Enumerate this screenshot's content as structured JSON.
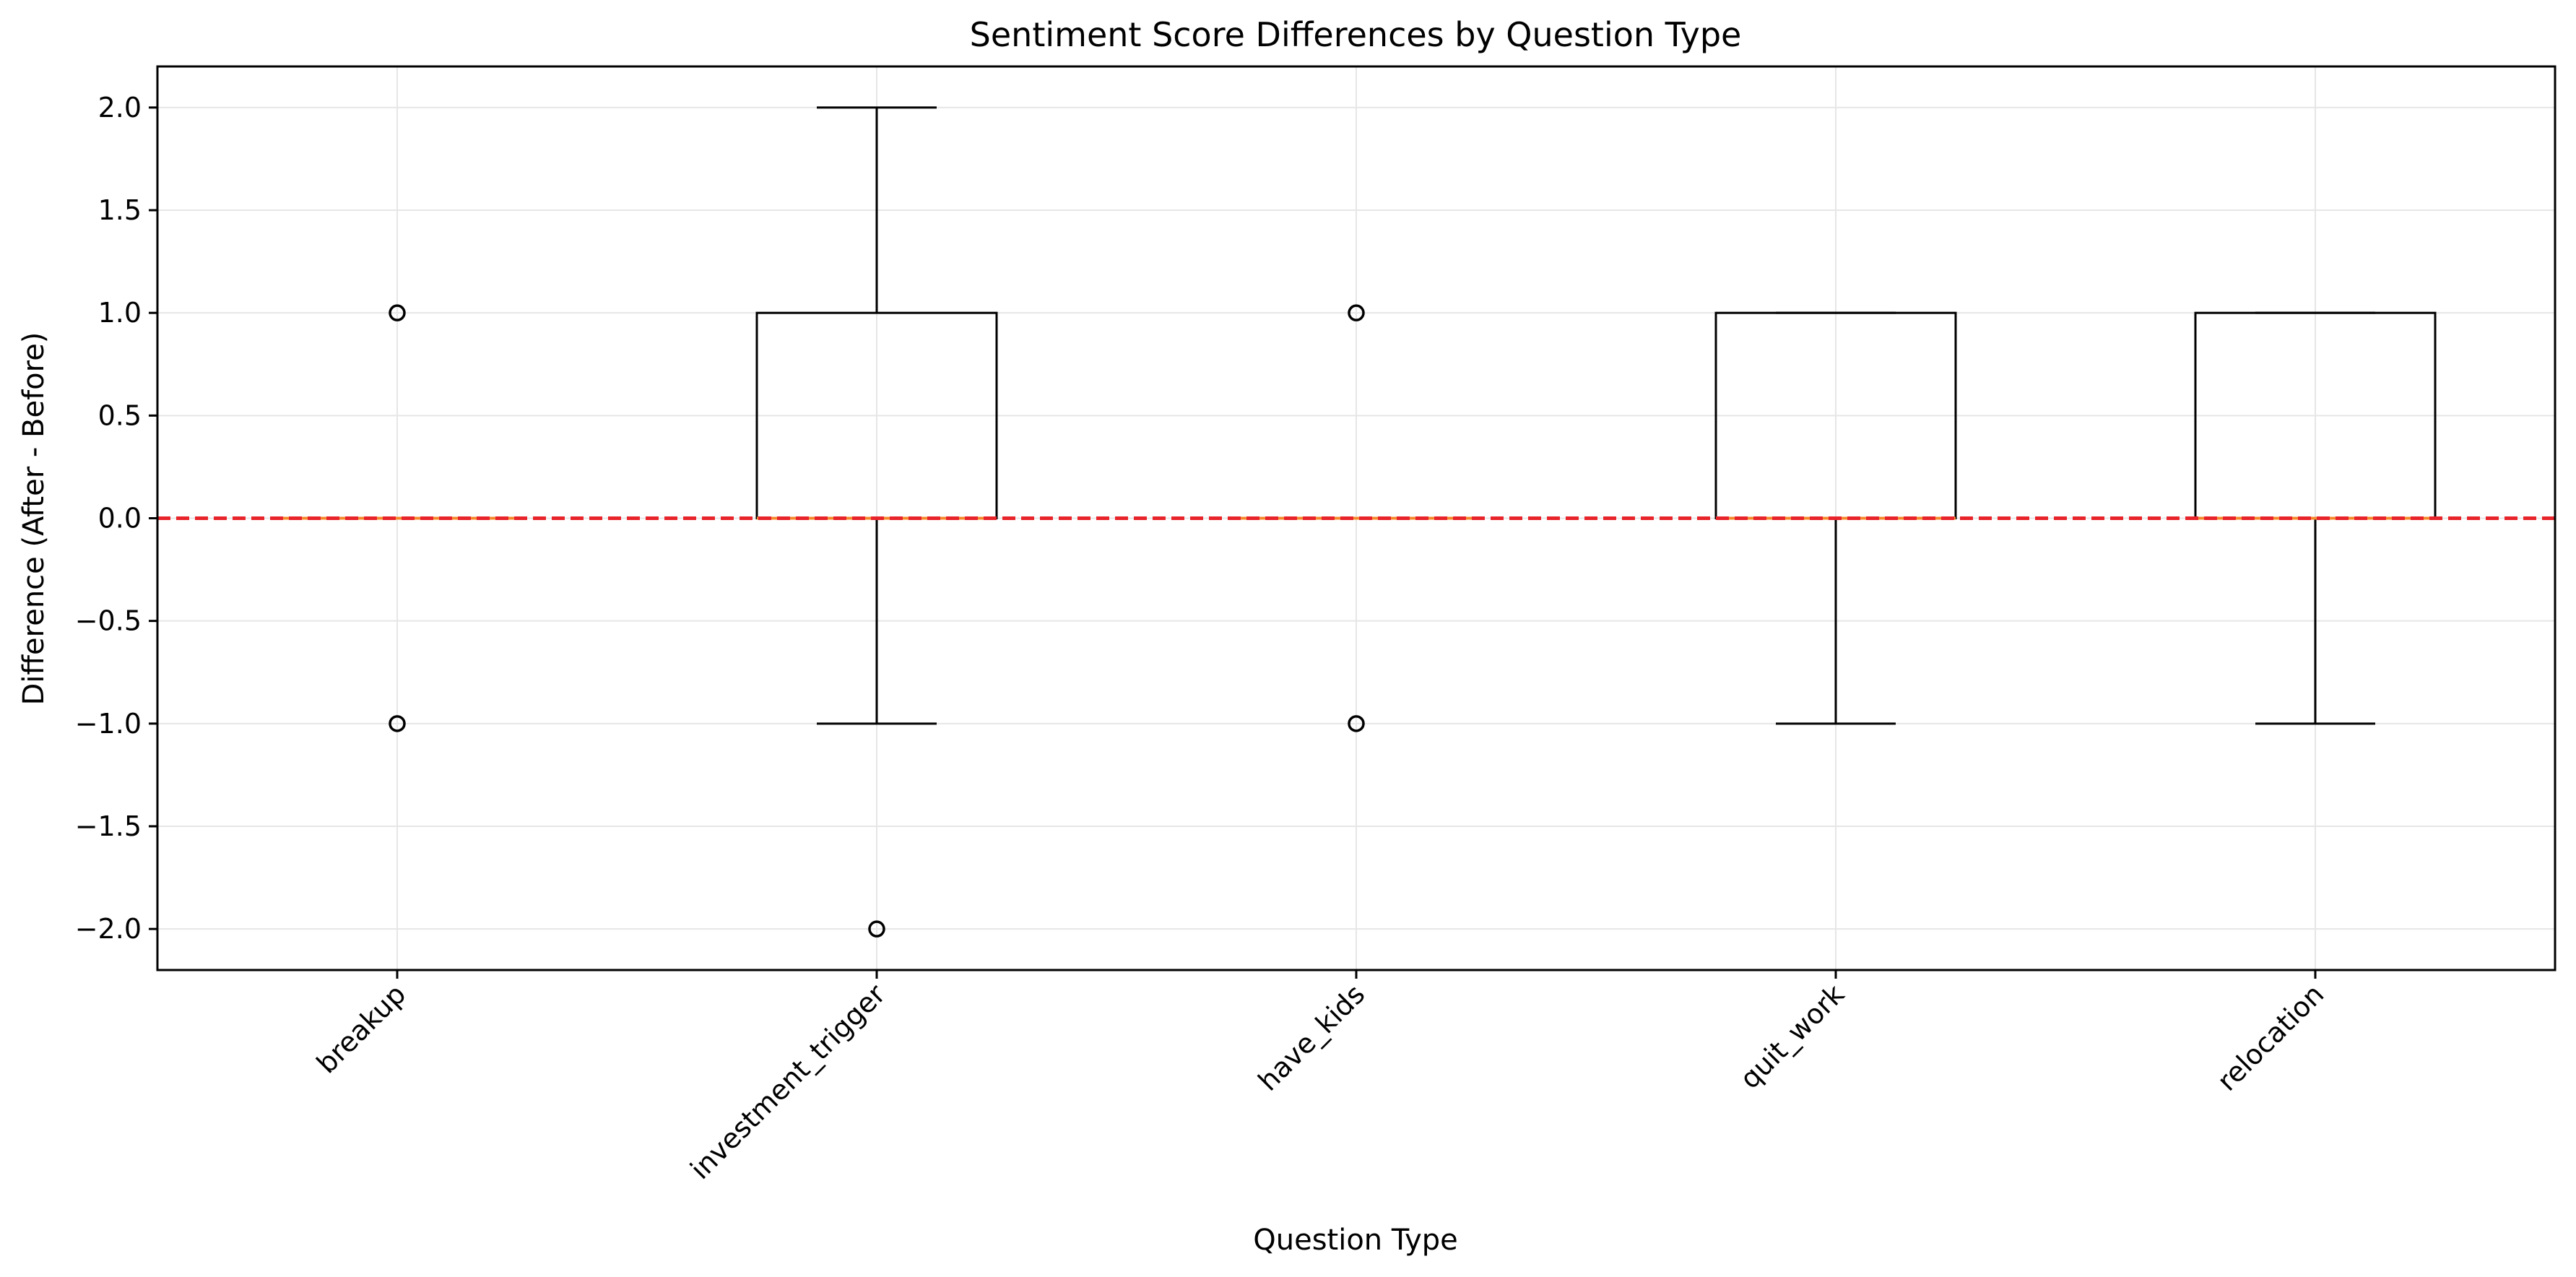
{
  "chart_data": {
    "type": "box",
    "title": "Sentiment Score Differences by Question Type",
    "xlabel": "Question Type",
    "ylabel": "Difference (After - Before)",
    "categories": [
      "breakup",
      "investment_trigger",
      "have_kids",
      "quit_work",
      "relocation"
    ],
    "ylim": [
      -2.2,
      2.2
    ],
    "yticks": [
      -2.0,
      -1.5,
      -1.0,
      -0.5,
      0.0,
      0.5,
      1.0,
      1.5,
      2.0
    ],
    "ytick_labels": [
      "−2.0",
      "−1.5",
      "−1.0",
      "−0.5",
      "0.0",
      "0.5",
      "1.0",
      "1.5",
      "2.0"
    ],
    "grid": true,
    "reference_line": {
      "y": 0.0,
      "color": "#e8242b",
      "style": "dashed"
    },
    "boxes": [
      {
        "category": "breakup",
        "whisker_low": 0,
        "q1": 0,
        "median": 0,
        "q3": 0,
        "whisker_high": 0,
        "outliers": [
          1.0,
          -1.0
        ]
      },
      {
        "category": "investment_trigger",
        "whisker_low": -1.0,
        "q1": 0.0,
        "median": 0.0,
        "q3": 1.0,
        "whisker_high": 2.0,
        "outliers": [
          -2.0
        ]
      },
      {
        "category": "have_kids",
        "whisker_low": 0,
        "q1": 0,
        "median": 0,
        "q3": 0,
        "whisker_high": 0,
        "outliers": [
          1.0,
          -1.0
        ]
      },
      {
        "category": "quit_work",
        "whisker_low": -1.0,
        "q1": 0.0,
        "median": 0.0,
        "q3": 1.0,
        "whisker_high": 1.0,
        "outliers": []
      },
      {
        "category": "relocation",
        "whisker_low": -1.0,
        "q1": 0.0,
        "median": 0.0,
        "q3": 1.0,
        "whisker_high": 1.0,
        "outliers": []
      }
    ],
    "colors": {
      "box": "#000000",
      "median": "#f5892c",
      "grid": "#e6e6e6"
    }
  }
}
